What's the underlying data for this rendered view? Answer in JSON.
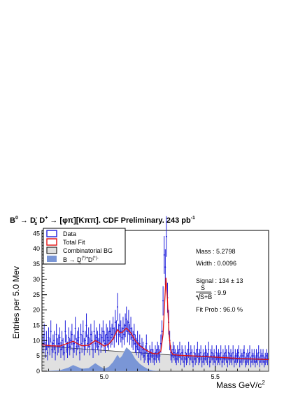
{
  "title": {
    "b0": "B",
    "b0_sup": "0",
    "arrow1": "→",
    "ds": "D",
    "ds_sup": "-",
    "ds_sub": "s",
    "dplus": "D",
    "dplus_sup": "+",
    "arrow2": "→",
    "rest": "[φπ][Kππ]. CDF Preliminary. 243 pb",
    "lumi_sup": "-1"
  },
  "legend": {
    "data": "Data",
    "total_fit": "Total Fit",
    "comb_bg": "Combinatorial BG",
    "partial_b": "B",
    "partial_arrow": "→",
    "partial_d": "D",
    "partial_d_sup": "(*)+",
    "partial_d_sub": "s",
    "partial_d2": " D",
    "partial_d2_sup": "(*)-"
  },
  "stats": {
    "mass": "Mass : 5.2798",
    "width": "Width : 0.0096",
    "signal": "Signal :  134 ± 13",
    "s_num": "S",
    "s_den": "S+B",
    "s_val": ": 9.9",
    "fit_prob": "Fit Prob : 96.0 %"
  },
  "colors": {
    "data": "#1f1fdc",
    "fit": "#e01010",
    "comb_fill": "#e0e0e0",
    "partial_fill": "#7a96d6"
  },
  "chart_data": {
    "type": "histogram",
    "xlabel": "Mass GeV/c",
    "xlabel_sup": "2",
    "ylabel": "Entries per 5.0 Mev",
    "xlim": [
      4.72,
      5.74
    ],
    "ylim": [
      0,
      46
    ],
    "x_ticks": [
      5.0,
      5.5
    ],
    "x_tick_labels": [
      "5.0",
      "5.5"
    ],
    "y_ticks": [
      0,
      5,
      10,
      15,
      20,
      25,
      30,
      35,
      40,
      45
    ],
    "y_tick_labels": [
      "0",
      "5",
      "10",
      "15",
      "20",
      "25",
      "30",
      "35",
      "40",
      "45"
    ],
    "bin_width": 0.005,
    "data_points": [
      [
        4.725,
        9
      ],
      [
        4.73,
        12
      ],
      [
        4.735,
        7
      ],
      [
        4.74,
        10
      ],
      [
        4.745,
        6
      ],
      [
        4.75,
        11
      ],
      [
        4.755,
        8
      ],
      [
        4.76,
        13
      ],
      [
        4.765,
        7
      ],
      [
        4.77,
        9
      ],
      [
        4.775,
        10
      ],
      [
        4.78,
        6
      ],
      [
        4.785,
        12
      ],
      [
        4.79,
        8
      ],
      [
        4.795,
        9
      ],
      [
        4.8,
        11
      ],
      [
        4.805,
        7
      ],
      [
        4.81,
        10
      ],
      [
        4.815,
        8
      ],
      [
        4.82,
        6
      ],
      [
        4.825,
        13
      ],
      [
        4.83,
        9
      ],
      [
        4.835,
        7
      ],
      [
        4.84,
        11
      ],
      [
        4.845,
        8
      ],
      [
        4.85,
        10
      ],
      [
        4.855,
        12
      ],
      [
        4.86,
        7
      ],
      [
        4.865,
        9
      ],
      [
        4.87,
        14
      ],
      [
        4.875,
        8
      ],
      [
        4.88,
        10
      ],
      [
        4.885,
        11
      ],
      [
        4.89,
        6
      ],
      [
        4.895,
        12
      ],
      [
        4.9,
        9
      ],
      [
        4.905,
        13
      ],
      [
        4.91,
        8
      ],
      [
        4.915,
        10
      ],
      [
        4.92,
        15
      ],
      [
        4.925,
        9
      ],
      [
        4.93,
        11
      ],
      [
        4.935,
        8
      ],
      [
        4.94,
        12
      ],
      [
        4.945,
        10
      ],
      [
        4.95,
        7
      ],
      [
        4.955,
        13
      ],
      [
        4.96,
        9
      ],
      [
        4.965,
        11
      ],
      [
        4.97,
        10
      ],
      [
        4.975,
        8
      ],
      [
        4.98,
        12
      ],
      [
        4.985,
        9
      ],
      [
        4.99,
        11
      ],
      [
        4.995,
        13
      ],
      [
        5.0,
        10
      ],
      [
        5.005,
        9
      ],
      [
        5.01,
        12
      ],
      [
        5.015,
        11
      ],
      [
        5.02,
        10
      ],
      [
        5.025,
        13
      ],
      [
        5.03,
        11
      ],
      [
        5.035,
        12
      ],
      [
        5.04,
        14
      ],
      [
        5.045,
        11
      ],
      [
        5.05,
        16
      ],
      [
        5.055,
        13
      ],
      [
        5.06,
        21
      ],
      [
        5.065,
        12
      ],
      [
        5.07,
        15
      ],
      [
        5.075,
        13
      ],
      [
        5.08,
        11
      ],
      [
        5.085,
        14
      ],
      [
        5.09,
        12
      ],
      [
        5.095,
        15
      ],
      [
        5.1,
        17
      ],
      [
        5.105,
        13
      ],
      [
        5.11,
        16
      ],
      [
        5.115,
        12
      ],
      [
        5.12,
        14
      ],
      [
        5.125,
        11
      ],
      [
        5.13,
        10
      ],
      [
        5.135,
        12
      ],
      [
        5.14,
        9
      ],
      [
        5.145,
        8
      ],
      [
        5.15,
        10
      ],
      [
        5.155,
        7
      ],
      [
        5.16,
        9
      ],
      [
        5.165,
        6
      ],
      [
        5.17,
        8
      ],
      [
        5.175,
        7
      ],
      [
        5.18,
        5
      ],
      [
        5.185,
        6
      ],
      [
        5.19,
        9
      ],
      [
        5.195,
        5
      ],
      [
        5.2,
        4
      ],
      [
        5.205,
        6
      ],
      [
        5.21,
        5
      ],
      [
        5.215,
        7
      ],
      [
        5.22,
        5
      ],
      [
        5.225,
        4
      ],
      [
        5.23,
        6
      ],
      [
        5.235,
        5
      ],
      [
        5.24,
        7
      ],
      [
        5.245,
        6
      ],
      [
        5.25,
        5
      ],
      [
        5.255,
        9
      ],
      [
        5.26,
        13
      ],
      [
        5.265,
        23
      ],
      [
        5.27,
        38
      ],
      [
        5.275,
        34
      ],
      [
        5.28,
        44
      ],
      [
        5.285,
        24
      ],
      [
        5.29,
        16
      ],
      [
        5.295,
        10
      ],
      [
        5.3,
        6
      ],
      [
        5.305,
        5
      ],
      [
        5.31,
        7
      ],
      [
        5.315,
        6
      ],
      [
        5.32,
        5
      ],
      [
        5.325,
        4
      ],
      [
        5.33,
        6
      ],
      [
        5.335,
        5
      ],
      [
        5.34,
        7
      ],
      [
        5.345,
        4
      ],
      [
        5.35,
        6
      ],
      [
        5.355,
        5
      ],
      [
        5.36,
        3
      ],
      [
        5.365,
        6
      ],
      [
        5.37,
        4
      ],
      [
        5.375,
        5
      ],
      [
        5.38,
        7
      ],
      [
        5.385,
        4
      ],
      [
        5.39,
        6
      ],
      [
        5.395,
        5
      ],
      [
        5.4,
        3
      ],
      [
        5.405,
        6
      ],
      [
        5.41,
        4
      ],
      [
        5.415,
        5
      ],
      [
        5.42,
        7
      ],
      [
        5.425,
        4
      ],
      [
        5.43,
        5
      ],
      [
        5.435,
        6
      ],
      [
        5.44,
        3
      ],
      [
        5.445,
        5
      ],
      [
        5.45,
        4
      ],
      [
        5.455,
        6
      ],
      [
        5.46,
        5
      ],
      [
        5.465,
        4
      ],
      [
        5.47,
        7
      ],
      [
        5.475,
        3
      ],
      [
        5.48,
        5
      ],
      [
        5.485,
        6
      ],
      [
        5.49,
        4
      ],
      [
        5.495,
        5
      ],
      [
        5.5,
        3
      ],
      [
        5.505,
        6
      ],
      [
        5.51,
        4
      ],
      [
        5.515,
        5
      ],
      [
        5.52,
        4
      ],
      [
        5.525,
        6
      ],
      [
        5.53,
        3
      ],
      [
        5.535,
        5
      ],
      [
        5.54,
        4
      ],
      [
        5.545,
        6
      ],
      [
        5.55,
        5
      ],
      [
        5.555,
        3
      ],
      [
        5.56,
        6
      ],
      [
        5.565,
        4
      ],
      [
        5.57,
        5
      ],
      [
        5.575,
        4
      ],
      [
        5.58,
        6
      ],
      [
        5.585,
        3
      ],
      [
        5.59,
        5
      ],
      [
        5.595,
        4
      ],
      [
        5.6,
        5
      ],
      [
        5.605,
        6
      ],
      [
        5.61,
        3
      ],
      [
        5.615,
        5
      ],
      [
        5.62,
        4
      ],
      [
        5.625,
        5
      ],
      [
        5.63,
        6
      ],
      [
        5.635,
        3
      ],
      [
        5.64,
        4
      ],
      [
        5.645,
        5
      ],
      [
        5.65,
        4
      ],
      [
        5.655,
        6
      ],
      [
        5.66,
        3
      ],
      [
        5.665,
        5
      ],
      [
        5.67,
        4
      ],
      [
        5.675,
        5
      ],
      [
        5.68,
        3
      ],
      [
        5.685,
        5
      ],
      [
        5.69,
        4
      ],
      [
        5.695,
        6
      ],
      [
        5.7,
        3
      ],
      [
        5.705,
        5
      ],
      [
        5.71,
        4
      ],
      [
        5.715,
        5
      ],
      [
        5.72,
        3
      ],
      [
        5.725,
        4
      ],
      [
        5.73,
        5
      ],
      [
        5.735,
        4
      ]
    ],
    "combinatorial_bg": [
      [
        4.72,
        8.2
      ],
      [
        4.8,
        7.8
      ],
      [
        4.9,
        7.3
      ],
      [
        5.0,
        6.8
      ],
      [
        5.1,
        6.3
      ],
      [
        5.2,
        5.8
      ],
      [
        5.3,
        5.3
      ],
      [
        5.4,
        4.9
      ],
      [
        5.5,
        4.5
      ],
      [
        5.6,
        4.1
      ],
      [
        5.74,
        3.7
      ]
    ],
    "partial_bg": [
      [
        4.72,
        0
      ],
      [
        4.8,
        0.3
      ],
      [
        4.84,
        1.2
      ],
      [
        4.86,
        2.0
      ],
      [
        4.88,
        1.4
      ],
      [
        4.9,
        0.8
      ],
      [
        4.93,
        1.0
      ],
      [
        4.96,
        2.6
      ],
      [
        4.98,
        1.6
      ],
      [
        5.0,
        0.8
      ],
      [
        5.02,
        1.4
      ],
      [
        5.04,
        3.0
      ],
      [
        5.06,
        5.4
      ],
      [
        5.07,
        4.2
      ],
      [
        5.08,
        5.0
      ],
      [
        5.1,
        7.8
      ],
      [
        5.12,
        6.5
      ],
      [
        5.14,
        4.0
      ],
      [
        5.16,
        2.4
      ],
      [
        5.18,
        1.4
      ],
      [
        5.2,
        0.6
      ],
      [
        5.22,
        0.2
      ],
      [
        5.25,
        0
      ],
      [
        5.74,
        0
      ]
    ],
    "total_fit": [
      [
        4.72,
        8.6
      ],
      [
        4.76,
        8.3
      ],
      [
        4.8,
        8.2
      ],
      [
        4.84,
        9.2
      ],
      [
        4.86,
        9.8
      ],
      [
        4.88,
        9.0
      ],
      [
        4.9,
        8.3
      ],
      [
        4.93,
        8.5
      ],
      [
        4.96,
        10.0
      ],
      [
        4.98,
        9.2
      ],
      [
        5.0,
        8.2
      ],
      [
        5.02,
        8.8
      ],
      [
        5.04,
        10.5
      ],
      [
        5.06,
        13.6
      ],
      [
        5.07,
        12.6
      ],
      [
        5.08,
        12.6
      ],
      [
        5.1,
        14.1
      ],
      [
        5.12,
        12.5
      ],
      [
        5.14,
        10.0
      ],
      [
        5.16,
        8.3
      ],
      [
        5.18,
        7.3
      ],
      [
        5.2,
        6.4
      ],
      [
        5.22,
        5.8
      ],
      [
        5.24,
        5.6
      ],
      [
        5.255,
        6.6
      ],
      [
        5.265,
        12
      ],
      [
        5.272,
        22
      ],
      [
        5.278,
        30.5
      ],
      [
        5.284,
        24
      ],
      [
        5.292,
        12
      ],
      [
        5.3,
        6.5
      ],
      [
        5.31,
        5.4
      ],
      [
        5.34,
        5.2
      ],
      [
        5.4,
        5.0
      ],
      [
        5.5,
        4.6
      ],
      [
        5.6,
        4.2
      ],
      [
        5.74,
        3.8
      ]
    ]
  }
}
